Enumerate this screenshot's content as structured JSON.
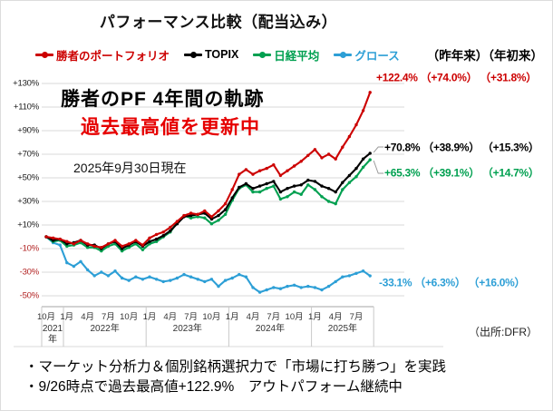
{
  "title": "パフォーマンス比較（配当込み）",
  "legend": {
    "items": [
      {
        "label": "勝者のポートフォリオ",
        "color": "#cc0000"
      },
      {
        "label": "TOPIX",
        "color": "#000000"
      },
      {
        "label": "日経平均",
        "color": "#00a050"
      },
      {
        "label": "グロース",
        "color": "#2d9fd6"
      }
    ],
    "right_note": "（昨年来）（年初来）"
  },
  "annotations": {
    "headline": "勝者のPF 4年間の軌跡",
    "highlight": "過去最高値を更新中",
    "as_of": "2025年9月30日現在"
  },
  "source": "（出所:DFR）",
  "footer": {
    "line1": "・マーケット分析力＆個別銘柄選択力で「市場に打ち勝つ」を実践",
    "line2": "・9/26時点で過去最高値+122.9%　アウトパフォーム継続中"
  },
  "colors": {
    "grid": "#d9d9d9",
    "axis_line": "#a6a6a6",
    "axis_table": "#c9c9c9",
    "y_label_positive": "#1a1a1a",
    "y_label_negative": "#b22222",
    "connector": "#9a9a9a"
  },
  "chart_data": {
    "type": "line",
    "title": "パフォーマンス比較（配当込み）",
    "x_start": "2021-10",
    "x_end": "2025-09",
    "frequency": "monthly",
    "x_tick_labels": [
      "10月",
      "1月",
      "4月",
      "7月",
      "10月",
      "1月",
      "4月",
      "7月",
      "10月",
      "1月",
      "4月",
      "7月",
      "10月",
      "1月",
      "4月",
      "7月"
    ],
    "year_labels": [
      {
        "label": "2021年",
        "months": 3
      },
      {
        "label": "2022年",
        "months": 12
      },
      {
        "label": "2023年",
        "months": 12
      },
      {
        "label": "2024年",
        "months": 12
      },
      {
        "label": "2025年",
        "months": 9
      }
    ],
    "ylim": [
      -50,
      130
    ],
    "y_ticks": [
      {
        "label": "+130%",
        "value": 130
      },
      {
        "label": "+110%",
        "value": 110
      },
      {
        "label": "+90%",
        "value": 90
      },
      {
        "label": "+70%",
        "value": 70
      },
      {
        "label": "+50%",
        "value": 50
      },
      {
        "label": "+30%",
        "value": 30
      },
      {
        "label": "+10%",
        "value": 10
      },
      {
        "label": "-10%",
        "value": -10
      },
      {
        "label": "-30%",
        "value": -30
      },
      {
        "label": "-50%",
        "value": -50
      }
    ],
    "grid": true,
    "legend_position": "top",
    "series": [
      {
        "name": "勝者のポートフォリオ",
        "color": "#cc0000",
        "end_label": "+122.4% （+74.0%） （+31.8%）",
        "values": [
          0,
          -1,
          -2,
          -4,
          -6,
          -3,
          -6,
          -8,
          -9,
          -6,
          -3,
          -8,
          -6,
          -3,
          -7,
          -1,
          2,
          4,
          8,
          13,
          18,
          20,
          19,
          22,
          17,
          22,
          28,
          40,
          53,
          57,
          53,
          56,
          58,
          61,
          52,
          56,
          60,
          64,
          69,
          74,
          67,
          70,
          66,
          76,
          85,
          95,
          107,
          122.4
        ]
      },
      {
        "name": "TOPIX",
        "color": "#000000",
        "end_label": "+70.8% （+38.9%） （+15.3%）",
        "values": [
          0,
          -3,
          -2,
          -6,
          -5,
          -3,
          -7,
          -7,
          -10,
          -6,
          -4,
          -10,
          -7,
          -4,
          -8,
          -4,
          -2,
          1,
          5,
          11,
          17,
          18,
          19,
          20,
          15,
          18,
          23,
          33,
          42,
          45,
          41,
          43,
          45,
          47,
          38,
          41,
          43,
          44,
          48,
          47,
          43,
          41,
          38,
          46,
          52,
          58,
          66,
          70.8
        ]
      },
      {
        "name": "日経平均",
        "color": "#00a050",
        "end_label": "+65.3% （+39.1%） （+14.7%）",
        "values": [
          0,
          -4,
          -3,
          -8,
          -7,
          -5,
          -9,
          -9,
          -12,
          -8,
          -6,
          -12,
          -9,
          -6,
          -11,
          -6,
          -4,
          0,
          4,
          12,
          18,
          16,
          17,
          16,
          11,
          14,
          19,
          31,
          41,
          44,
          38,
          38,
          41,
          43,
          32,
          34,
          38,
          36,
          44,
          40,
          34,
          30,
          28,
          40,
          46,
          51,
          59,
          65.3
        ]
      },
      {
        "name": "グロース",
        "color": "#2d9fd6",
        "end_label": "-33.1% （+6.3%） （+16.0%）",
        "values": [
          0,
          -5,
          -7,
          -22,
          -25,
          -21,
          -28,
          -33,
          -30,
          -33,
          -29,
          -35,
          -37,
          -34,
          -36,
          -34,
          -36,
          -38,
          -37,
          -35,
          -32,
          -34,
          -36,
          -38,
          -36,
          -42,
          -37,
          -35,
          -32,
          -34,
          -43,
          -47,
          -45,
          -43,
          -44,
          -42,
          -41,
          -43,
          -42,
          -43,
          -45,
          -42,
          -38,
          -34,
          -33,
          -31,
          -29,
          -33.1
        ]
      }
    ]
  }
}
